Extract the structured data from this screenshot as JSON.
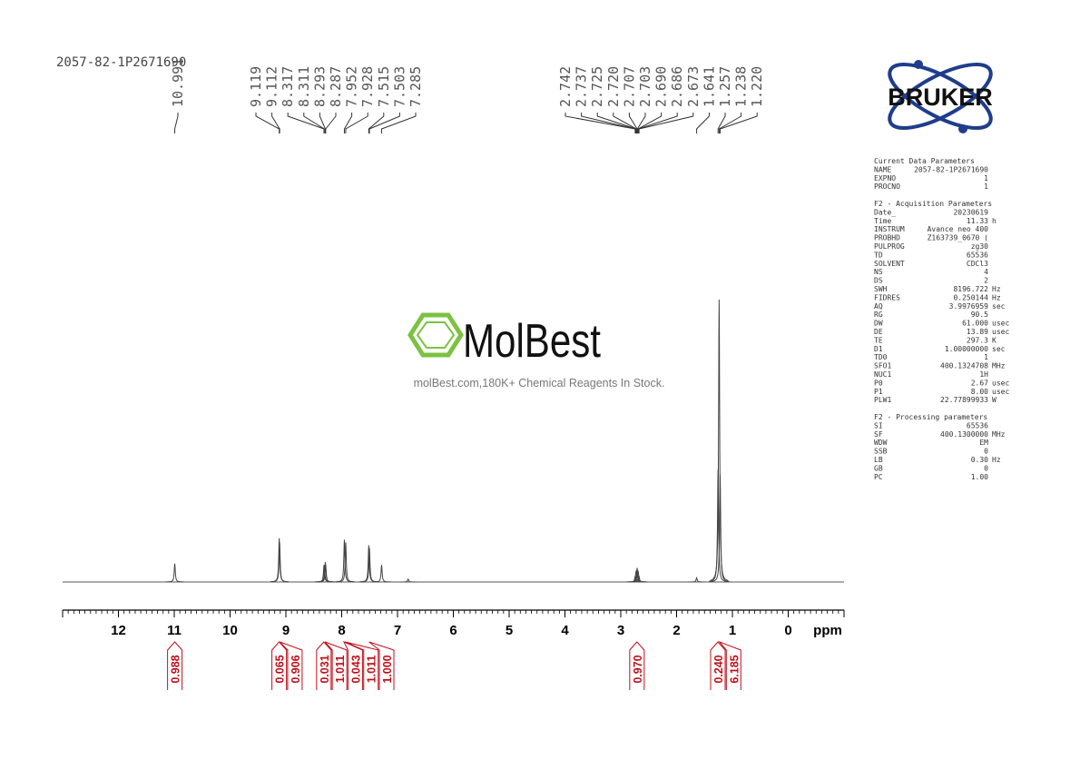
{
  "header": {
    "sample_id": "2057-82-1P2671690"
  },
  "watermark": {
    "brand": "MolBest",
    "tagline": "molBest.com,180K+ Chemical Reagents In Stock."
  },
  "logo": {
    "text": "BRUKER"
  },
  "spectrum": {
    "type": "nmr",
    "xlim": [
      13,
      -1
    ],
    "ylim": [
      0,
      100
    ],
    "xticks": [
      12,
      11,
      10,
      9,
      8,
      7,
      6,
      5,
      4,
      3,
      2,
      1,
      0
    ],
    "x_label": "ppm",
    "peaks": [
      {
        "ppm": 10.991,
        "intensity": 6.5
      },
      {
        "ppm": 9.119,
        "intensity": 15.5
      },
      {
        "ppm": 9.112,
        "intensity": 14
      },
      {
        "ppm": 8.317,
        "intensity": 6
      },
      {
        "ppm": 8.311,
        "intensity": 6
      },
      {
        "ppm": 8.293,
        "intensity": 7
      },
      {
        "ppm": 8.287,
        "intensity": 6
      },
      {
        "ppm": 7.952,
        "intensity": 15
      },
      {
        "ppm": 7.928,
        "intensity": 14
      },
      {
        "ppm": 7.515,
        "intensity": 13
      },
      {
        "ppm": 7.503,
        "intensity": 12
      },
      {
        "ppm": 7.285,
        "intensity": 6
      },
      {
        "ppm": 6.81,
        "intensity": 1
      },
      {
        "ppm": 2.742,
        "intensity": 2
      },
      {
        "ppm": 2.725,
        "intensity": 4
      },
      {
        "ppm": 2.707,
        "intensity": 5
      },
      {
        "ppm": 2.69,
        "intensity": 4
      },
      {
        "ppm": 2.673,
        "intensity": 2
      },
      {
        "ppm": 1.641,
        "intensity": 1.5
      },
      {
        "ppm": 1.257,
        "intensity": 40
      },
      {
        "ppm": 1.238,
        "intensity": 100
      },
      {
        "ppm": 1.22,
        "intensity": 38
      }
    ],
    "peak_label_groups": [
      [
        "10.991"
      ],
      [
        "9.119",
        "9.112",
        "8.317",
        "8.311",
        "8.293",
        "8.287",
        "7.952",
        "7.928",
        "7.515",
        "7.503",
        "7.285"
      ],
      [
        "2.742",
        "2.737",
        "2.725",
        "2.720",
        "2.707",
        "2.703",
        "2.690",
        "2.686",
        "2.673",
        "1.641",
        "1.257",
        "1.238",
        "1.220"
      ]
    ],
    "integrals": [
      {
        "value": "0.988",
        "ppm": 10.99
      },
      {
        "value": "0.065",
        "ppm": 9.12
      },
      {
        "value": "0.906",
        "ppm": 9.11
      },
      {
        "value": "0.031",
        "ppm": 8.32
      },
      {
        "value": "1.011",
        "ppm": 8.3
      },
      {
        "value": "0.043",
        "ppm": 7.96
      },
      {
        "value": "1.011",
        "ppm": 7.94
      },
      {
        "value": "1.000",
        "ppm": 7.51
      },
      {
        "value": "0.970",
        "ppm": 2.71
      },
      {
        "value": "0.240",
        "ppm": 1.26
      },
      {
        "value": "6.185",
        "ppm": 1.23
      }
    ]
  },
  "parameters": [
    {
      "title": "Current Data Parameters",
      "rows": [
        [
          "NAME",
          "2057-82-1P2671690"
        ],
        [
          "EXPNO",
          "1"
        ],
        [
          "PROCNO",
          "1"
        ]
      ]
    },
    {
      "title": "F2 - Acquisition Parameters",
      "rows": [
        [
          "Date_",
          "20230619"
        ],
        [
          "Time",
          "11.33",
          "h"
        ],
        [
          "INSTRUM",
          "Avance neo 400"
        ],
        [
          "PROBHD",
          "Z163739_0670 ("
        ],
        [
          "PULPROG",
          "zg30"
        ],
        [
          "TD",
          "65536"
        ],
        [
          "SOLVENT",
          "CDCl3"
        ],
        [
          "NS",
          "4"
        ],
        [
          "DS",
          "2"
        ],
        [
          "SWH",
          "8196.722",
          "Hz"
        ],
        [
          "FIDRES",
          "0.250144",
          "Hz"
        ],
        [
          "AQ",
          "3.9976959",
          "sec"
        ],
        [
          "RG",
          "90.5"
        ],
        [
          "DW",
          "61.000",
          "usec"
        ],
        [
          "DE",
          "13.89",
          "usec"
        ],
        [
          "TE",
          "297.3",
          "K"
        ],
        [
          "D1",
          "1.00000000",
          "sec"
        ],
        [
          "TD0",
          "1"
        ],
        [
          "SFO1",
          "400.1324708",
          "MHz"
        ],
        [
          "NUC1",
          "1H"
        ],
        [
          "P0",
          "2.67",
          "usec"
        ],
        [
          "P1",
          "8.00",
          "usec"
        ],
        [
          "PLW1",
          "22.77899933",
          "W"
        ]
      ]
    },
    {
      "title": "F2 - Processing parameters",
      "rows": [
        [
          "SI",
          "65536"
        ],
        [
          "SF",
          "400.1300000",
          "MHz"
        ],
        [
          "WDW",
          "EM"
        ],
        [
          "SSB",
          "0"
        ],
        [
          "LB",
          "0.30",
          "Hz"
        ],
        [
          "GB",
          "0"
        ],
        [
          "PC",
          "1.00"
        ]
      ]
    }
  ]
}
